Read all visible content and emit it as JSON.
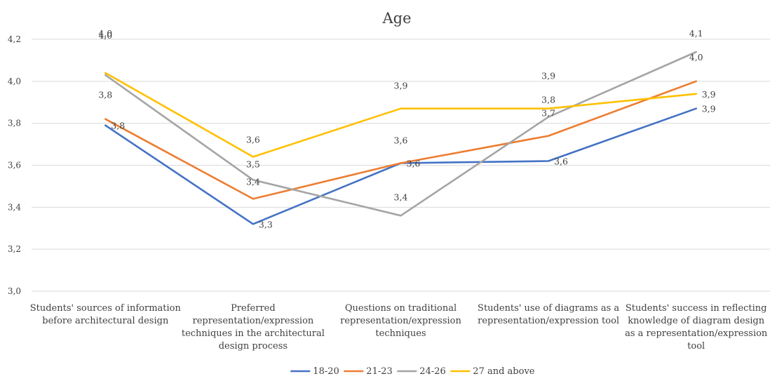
{
  "chart_data": {
    "type": "line",
    "title": "Age",
    "xlabel": "",
    "ylabel": "",
    "ylim": [
      3.0,
      4.2
    ],
    "yticks": [
      "3,0",
      "3,2",
      "3,4",
      "3,6",
      "3,8",
      "4,0",
      "4,2"
    ],
    "grid": true,
    "legend_position": "bottom",
    "categories": [
      [
        "Students' sources of information",
        "before architectural design"
      ],
      [
        "Preferred",
        "representation/expression",
        "techniques in the architectural",
        "design process"
      ],
      [
        "Questions on traditional",
        "representation/expression",
        "techniques"
      ],
      [
        "Students' use of diagrams as a",
        "representation/expression tool"
      ],
      [
        "Students' success in reflecting",
        "knowledge of diagram design",
        "as a representation/expression",
        "tool"
      ]
    ],
    "series": [
      {
        "name": "18-20",
        "color": "#4472c4",
        "values": [
          3.79,
          3.32,
          3.61,
          3.62,
          3.87
        ],
        "labels": [
          "3,8",
          "3,3",
          "3,6",
          "3,6",
          "3,9"
        ]
      },
      {
        "name": "21-23",
        "color": "#ed7d31",
        "values": [
          3.82,
          3.44,
          3.61,
          3.74,
          4.0
        ],
        "labels": [
          "3,8",
          "3,4",
          "3,6",
          "3,7",
          "4,0"
        ]
      },
      {
        "name": "24-26",
        "color": "#a5a5a5",
        "values": [
          4.03,
          3.53,
          3.36,
          3.83,
          4.14
        ],
        "labels": [
          "4,0",
          "3,5",
          "3,4",
          "3,8",
          "4,1"
        ]
      },
      {
        "name": "27 and above",
        "color": "#ffc000",
        "values": [
          4.04,
          3.64,
          3.87,
          3.87,
          3.94
        ],
        "labels": [
          "4,0",
          "3,6",
          "3,9",
          "3,9",
          "3,9"
        ]
      }
    ]
  }
}
